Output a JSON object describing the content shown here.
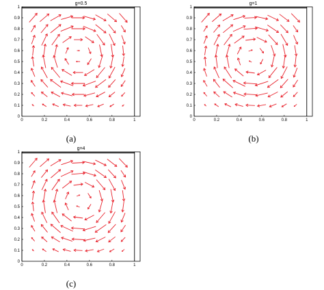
{
  "captions": [
    "(a)",
    "(b)",
    "(c)"
  ],
  "chart_data": [
    {
      "type": "quiver",
      "title": "g=0.5",
      "xlim": [
        0,
        1.05
      ],
      "ylim": [
        0,
        1
      ],
      "xticks": [
        "0",
        "0.2",
        "0.4",
        "0.6",
        "0.8",
        "1"
      ],
      "yticks": [
        "0",
        "0.1",
        "0.2",
        "0.3",
        "0.4",
        "0.5",
        "0.6",
        "0.7",
        "0.8",
        "0.9",
        "1"
      ],
      "boundary_x": [
        0,
        1
      ],
      "arrow_color": "#e8202a",
      "grid": false,
      "field": {
        "center": [
          0.5,
          0.56
        ],
        "grid_x_range": [
          0.1,
          0.9
        ],
        "grid_y_range": [
          0.1,
          0.9
        ],
        "grid_n": 9,
        "max_arrow_len": 0.12
      }
    },
    {
      "type": "quiver",
      "title": "g=1",
      "xlim": [
        0,
        1.05
      ],
      "ylim": [
        0,
        1
      ],
      "xticks": [
        "0",
        "0.2",
        "0.4",
        "0.6",
        "0.8",
        "1"
      ],
      "yticks": [
        "0",
        "0.1",
        "0.2",
        "0.3",
        "0.4",
        "0.5",
        "0.6",
        "0.7",
        "0.8",
        "0.9",
        "1"
      ],
      "boundary_x": [
        0,
        1
      ],
      "arrow_color": "#e8202a",
      "grid": false,
      "field": {
        "center": [
          0.52,
          0.54
        ],
        "grid_x_range": [
          0.1,
          0.9
        ],
        "grid_y_range": [
          0.1,
          0.9
        ],
        "grid_n": 9,
        "max_arrow_len": 0.12
      }
    },
    {
      "type": "quiver",
      "title": "g=4",
      "xlim": [
        0,
        1.05
      ],
      "ylim": [
        0,
        1
      ],
      "xticks": [
        "0",
        "0.2",
        "0.4",
        "0.6",
        "0.8",
        "1"
      ],
      "yticks": [
        "0",
        "0.1",
        "0.2",
        "0.3",
        "0.4",
        "0.5",
        "0.6",
        "0.7",
        "0.8",
        "0.9",
        "1"
      ],
      "boundary_x": [
        0,
        1
      ],
      "arrow_color": "#e8202a",
      "grid": false,
      "field": {
        "center": [
          0.52,
          0.55
        ],
        "grid_x_range": [
          0.1,
          0.9
        ],
        "grid_y_range": [
          0.1,
          0.9
        ],
        "grid_n": 9,
        "max_arrow_len": 0.12
      }
    }
  ]
}
